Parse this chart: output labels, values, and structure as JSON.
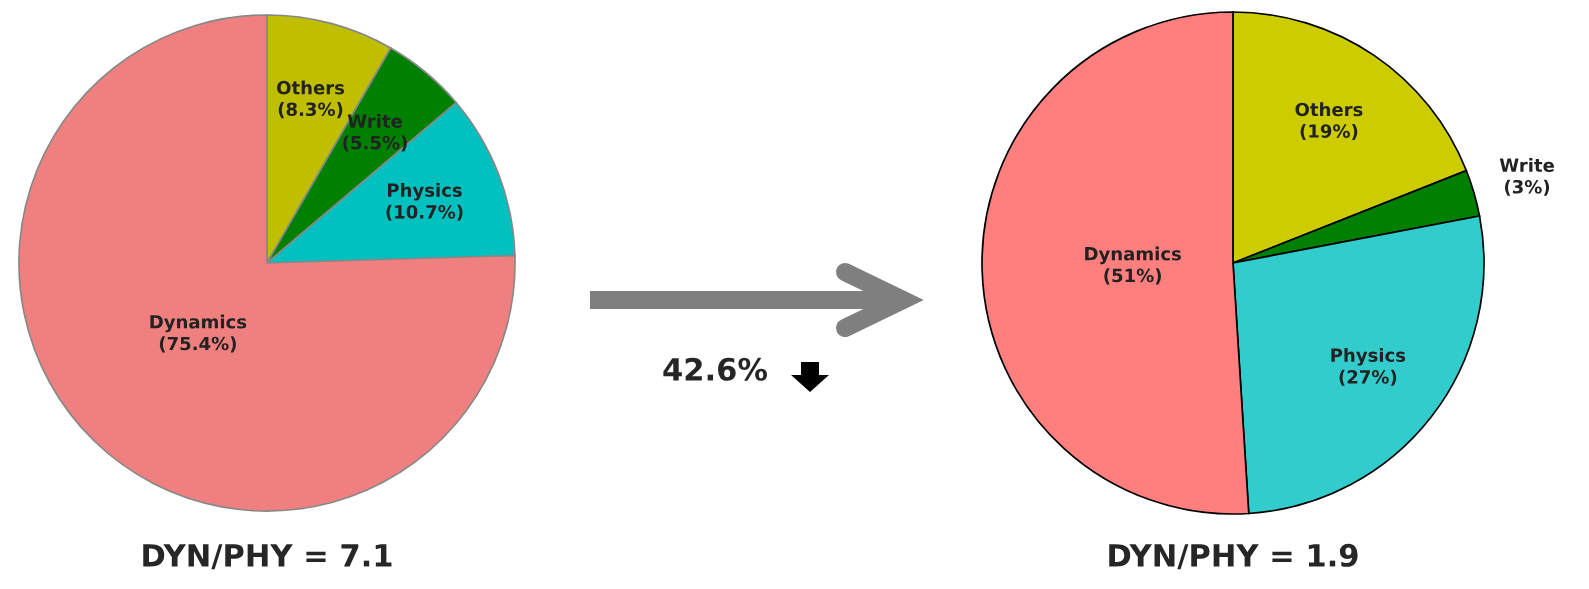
{
  "chart_data": [
    {
      "type": "pie",
      "categories": [
        "Others",
        "Write",
        "Physics",
        "Dynamics"
      ],
      "values": [
        8.3,
        5.5,
        10.7,
        75.4
      ],
      "colors": [
        "#bfbf00",
        "#008000",
        "#00c0c0",
        "#f08080"
      ],
      "value_labels": [
        "(8.3%)",
        "(5.5%)",
        "(10.7%)",
        "(75.4%)"
      ],
      "annotations": [
        "DYN/PHY = 7.1",
        "42.6%"
      ]
    },
    {
      "type": "pie",
      "categories": [
        "Others",
        "Write",
        "Physics",
        "Dynamics"
      ],
      "values": [
        19,
        3,
        27,
        51
      ],
      "colors": [
        "#cccc00",
        "#007f00",
        "#33cccc",
        "#ff7f7f"
      ],
      "value_labels": [
        "(19%)",
        "(3%)",
        "(27%)",
        "(51%)"
      ],
      "annotations": [
        "DYN/PHY = 1.9"
      ]
    }
  ]
}
